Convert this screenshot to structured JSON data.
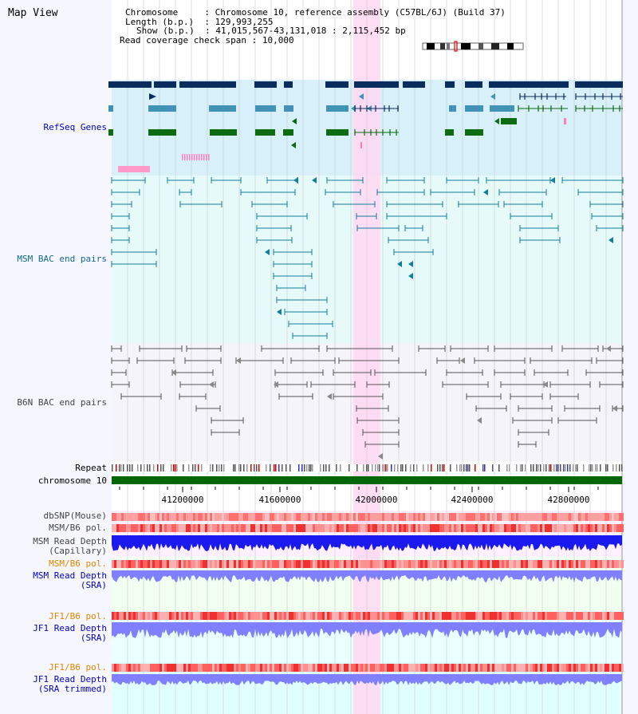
{
  "title": "Map View",
  "header": {
    "chromosome_key": "Chromosome",
    "chromosome_val": "Chromosome 10, reference assembly (C57BL/6J) (Build 37)",
    "length_key": "Length (b.p.)",
    "length_val": "129,993,255",
    "show_key": "Show (b.p.)",
    "show_val": "41,015,567-43,131,018 : 2,115,452 bp",
    "span_key": "Read coverage check span",
    "span_val": "10,000"
  },
  "tracks": {
    "refseq": "RefSeq Genes",
    "msm_bac": "MSM BAC end pairs",
    "b6n_bac": "B6N BAC end pairs",
    "repeat": "Repeat",
    "chromosome": "chromosome 10",
    "dbsnp": "dbSNP(Mouse)",
    "msm_b6_pol": "MSM/B6 pol.",
    "msm_depth_cap_1": "MSM Read Depth",
    "msm_depth_cap_2": "(Capillary)",
    "msm_b6_pol2": "MSM/B6 pol.",
    "msm_depth_sra_1": "MSM Read Depth",
    "msm_depth_sra_2": "(SRA)",
    "jf1_b6_pol": "JF1/B6 pol.",
    "jf1_depth_sra_1": "JF1 Read Depth",
    "jf1_depth_sra_2": "(SRA)",
    "jf1_b6_pol2": "JF1/B6 pol.",
    "jf1_depth_trim_1": "JF1 Read Depth",
    "jf1_depth_trim_2": "(SRA trimmed)"
  },
  "axis": {
    "ticks": [
      "41200000",
      "41600000",
      "42000000",
      "42400000",
      "42800000"
    ]
  },
  "colors": {
    "refseq_bg": "#d8f0fa",
    "msm_bg": "#e6fafa",
    "b6n_bg": "#f4f4fa",
    "highlight": "#ffd8f2",
    "gene_dark": "#0b2c5e",
    "gene_mid": "#4393b8",
    "gene_green": "#0d6b10",
    "msm_line": "#137e9a",
    "b6n_line": "#555555",
    "chrom": "#006600",
    "depth_blue": "#1a1aee",
    "depth_light": "#8080ff",
    "label_blue": "#0000c0",
    "label_orange": "#e08800",
    "label_teal": "#106a8a"
  }
}
